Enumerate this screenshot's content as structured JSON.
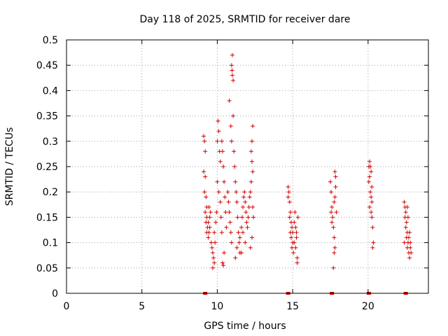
{
  "chart_data": {
    "type": "scatter",
    "title": "Day 118 of 2025, SRMTID for receiver dare",
    "xlabel": "GPS time / hours",
    "ylabel": "SRMTID / TECUs",
    "xlim": [
      0,
      24
    ],
    "ylim": [
      0,
      0.5
    ],
    "grid": true,
    "x_ticks": [
      0,
      5,
      10,
      15,
      20
    ],
    "x_tick_labels": [
      "0",
      "5",
      "10",
      "15",
      "20"
    ],
    "y_ticks": [
      0,
      0.05,
      0.1,
      0.15,
      0.2,
      0.25,
      0.3,
      0.35,
      0.4,
      0.45,
      0.5
    ],
    "y_tick_labels": [
      "0",
      "0.05",
      "0.1",
      "0.15",
      "0.2",
      "0.25",
      "0.3",
      "0.35",
      "0.4",
      "0.45",
      "0.5"
    ],
    "point_color": "#d40000",
    "series": [
      {
        "name": "SRMTID",
        "points": [
          [
            9.1,
            0.31
          ],
          [
            9.15,
            0.3
          ],
          [
            9.2,
            0.28
          ],
          [
            9.1,
            0.24
          ],
          [
            9.2,
            0.23
          ],
          [
            9.15,
            0.2
          ],
          [
            9.25,
            0.19
          ],
          [
            9.3,
            0.17
          ],
          [
            9.2,
            0.16
          ],
          [
            9.3,
            0.15
          ],
          [
            9.25,
            0.14
          ],
          [
            9.35,
            0.13
          ],
          [
            9.3,
            0.12
          ],
          [
            9.4,
            0.11
          ],
          [
            9.45,
            0.12
          ],
          [
            9.5,
            0.13
          ],
          [
            9.4,
            0.14
          ],
          [
            9.5,
            0.15
          ],
          [
            9.55,
            0.16
          ],
          [
            9.45,
            0.17
          ],
          [
            9.6,
            0.1
          ],
          [
            9.65,
            0.09
          ],
          [
            9.7,
            0.08
          ],
          [
            9.75,
            0.07
          ],
          [
            9.7,
            0.05
          ],
          [
            9.8,
            0.06
          ],
          [
            9.85,
            0.1
          ],
          [
            9.8,
            0.12
          ],
          [
            9.9,
            0.14
          ],
          [
            9.95,
            0.16
          ],
          [
            10.0,
            0.3
          ],
          [
            10.05,
            0.34
          ],
          [
            10.1,
            0.32
          ],
          [
            10.15,
            0.28
          ],
          [
            10.2,
            0.26
          ],
          [
            10.0,
            0.22
          ],
          [
            10.1,
            0.2
          ],
          [
            10.2,
            0.18
          ],
          [
            10.25,
            0.15
          ],
          [
            10.3,
            0.12
          ],
          [
            10.35,
            0.06
          ],
          [
            10.4,
            0.055
          ],
          [
            10.45,
            0.08
          ],
          [
            10.3,
            0.3
          ],
          [
            10.35,
            0.28
          ],
          [
            10.4,
            0.25
          ],
          [
            10.45,
            0.22
          ],
          [
            10.5,
            0.19
          ],
          [
            10.55,
            0.16
          ],
          [
            10.6,
            0.13
          ],
          [
            10.7,
            0.2
          ],
          [
            10.75,
            0.18
          ],
          [
            10.8,
            0.16
          ],
          [
            10.85,
            0.14
          ],
          [
            10.9,
            0.12
          ],
          [
            10.95,
            0.1
          ],
          [
            10.8,
            0.38
          ],
          [
            10.9,
            0.33
          ],
          [
            10.95,
            0.3
          ],
          [
            11.0,
            0.47
          ],
          [
            10.95,
            0.45
          ],
          [
            11.0,
            0.43
          ],
          [
            11.05,
            0.42
          ],
          [
            10.98,
            0.44
          ],
          [
            11.05,
            0.35
          ],
          [
            11.1,
            0.28
          ],
          [
            11.15,
            0.25
          ],
          [
            11.2,
            0.22
          ],
          [
            11.25,
            0.2
          ],
          [
            11.3,
            0.18
          ],
          [
            11.35,
            0.15
          ],
          [
            11.4,
            0.12
          ],
          [
            11.45,
            0.1
          ],
          [
            11.5,
            0.08
          ],
          [
            11.2,
            0.07
          ],
          [
            11.3,
            0.09
          ],
          [
            11.5,
            0.11
          ],
          [
            11.6,
            0.13
          ],
          [
            11.65,
            0.15
          ],
          [
            11.7,
            0.17
          ],
          [
            11.75,
            0.19
          ],
          [
            11.8,
            0.2
          ],
          [
            11.85,
            0.18
          ],
          [
            11.9,
            0.16
          ],
          [
            11.95,
            0.14
          ],
          [
            11.6,
            0.08
          ],
          [
            11.7,
            0.12
          ],
          [
            11.85,
            0.1
          ],
          [
            12.0,
            0.13
          ],
          [
            12.05,
            0.15
          ],
          [
            12.1,
            0.17
          ],
          [
            12.15,
            0.19
          ],
          [
            12.2,
            0.2
          ],
          [
            12.25,
            0.22
          ],
          [
            12.3,
            0.26
          ],
          [
            12.35,
            0.33
          ],
          [
            12.3,
            0.3
          ],
          [
            12.25,
            0.28
          ],
          [
            12.35,
            0.24
          ],
          [
            12.2,
            0.09
          ],
          [
            12.3,
            0.11
          ],
          [
            12.35,
            0.17
          ],
          [
            12.4,
            0.15
          ],
          [
            14.7,
            0.21
          ],
          [
            14.75,
            0.2
          ],
          [
            14.7,
            0.19
          ],
          [
            14.8,
            0.18
          ],
          [
            14.85,
            0.16
          ],
          [
            14.8,
            0.15
          ],
          [
            14.9,
            0.14
          ],
          [
            14.95,
            0.13
          ],
          [
            14.85,
            0.12
          ],
          [
            14.9,
            0.11
          ],
          [
            15.0,
            0.1
          ],
          [
            14.95,
            0.09
          ],
          [
            15.05,
            0.08
          ],
          [
            15.0,
            0.12
          ],
          [
            15.1,
            0.14
          ],
          [
            15.15,
            0.16
          ],
          [
            15.2,
            0.13
          ],
          [
            15.1,
            0.1
          ],
          [
            15.25,
            0.12
          ],
          [
            15.2,
            0.09
          ],
          [
            15.3,
            0.07
          ],
          [
            15.3,
            0.06
          ],
          [
            15.25,
            0.11
          ],
          [
            15.35,
            0.15
          ],
          [
            17.5,
            0.22
          ],
          [
            17.55,
            0.2
          ],
          [
            17.6,
            0.17
          ],
          [
            17.55,
            0.16
          ],
          [
            17.65,
            0.15
          ],
          [
            17.6,
            0.14
          ],
          [
            17.7,
            0.13
          ],
          [
            17.75,
            0.18
          ],
          [
            17.8,
            0.24
          ],
          [
            17.85,
            0.21
          ],
          [
            17.8,
            0.19
          ],
          [
            17.9,
            0.16
          ],
          [
            17.75,
            0.11
          ],
          [
            17.8,
            0.09
          ],
          [
            17.75,
            0.08
          ],
          [
            17.7,
            0.05
          ],
          [
            17.85,
            0.23
          ],
          [
            20.05,
            0.25
          ],
          [
            20.1,
            0.26
          ],
          [
            20.15,
            0.25
          ],
          [
            20.2,
            0.24
          ],
          [
            20.1,
            0.23
          ],
          [
            20.05,
            0.22
          ],
          [
            20.15,
            0.2
          ],
          [
            20.2,
            0.19
          ],
          [
            20.25,
            0.18
          ],
          [
            20.1,
            0.17
          ],
          [
            20.2,
            0.16
          ],
          [
            20.25,
            0.15
          ],
          [
            20.3,
            0.13
          ],
          [
            20.35,
            0.1
          ],
          [
            20.3,
            0.09
          ],
          [
            20.25,
            0.21
          ],
          [
            22.4,
            0.18
          ],
          [
            22.45,
            0.17
          ],
          [
            22.5,
            0.16
          ],
          [
            22.45,
            0.15
          ],
          [
            22.55,
            0.14
          ],
          [
            22.5,
            0.13
          ],
          [
            22.6,
            0.12
          ],
          [
            22.55,
            0.11
          ],
          [
            22.65,
            0.1
          ],
          [
            22.6,
            0.09
          ],
          [
            22.7,
            0.08
          ],
          [
            22.75,
            0.07
          ],
          [
            22.7,
            0.11
          ],
          [
            22.8,
            0.1
          ],
          [
            22.75,
            0.12
          ],
          [
            22.8,
            0.09
          ],
          [
            22.85,
            0.08
          ],
          [
            22.65,
            0.15
          ],
          [
            22.6,
            0.17
          ],
          [
            22.4,
            0.1
          ]
        ]
      }
    ],
    "baseline_markers": [
      9.2,
      14.7,
      17.6,
      20.05,
      22.5
    ]
  }
}
